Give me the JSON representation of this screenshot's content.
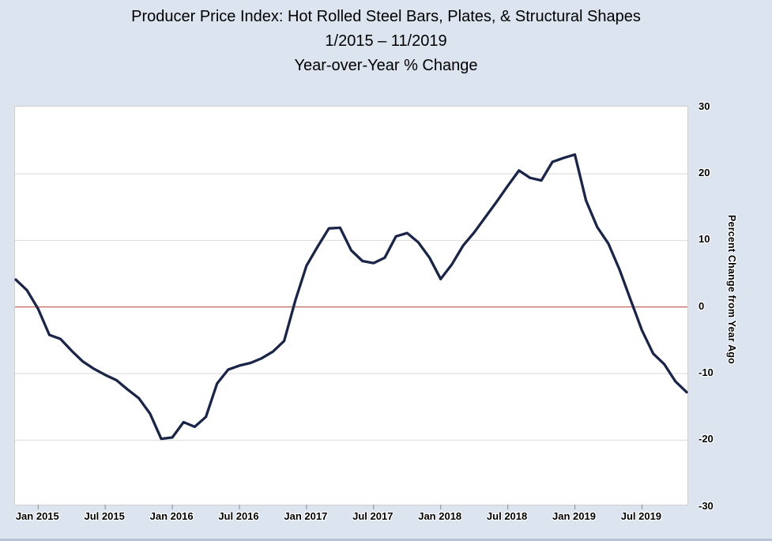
{
  "page_bg": "#dce4f0",
  "header": {
    "title_line1": "Producer Price Index: Hot Rolled Steel Bars, Plates, & Structural Shapes",
    "title_line2": "1/2015 – 11/2019",
    "title_line3": "Year-over-Year % Change"
  },
  "chart_data": {
    "type": "line",
    "title": "Producer Price Index: Hot Rolled Steel Bars, Plates, & Structural Shapes",
    "subtitle": "1/2015 – 11/2019",
    "value_label": "Year-over-Year % Change",
    "ylabel_right": "Percent Change from Year Ago",
    "ylim": [
      -30,
      30
    ],
    "y_ticks": [
      30,
      20,
      10,
      0,
      -10,
      -20,
      -30
    ],
    "grid": true,
    "legend_position": "none",
    "zero_line_value": 0,
    "colors": {
      "line": "#1a2547",
      "zero_line": "#c0524e",
      "gridline": "#d9d9d9",
      "plot_bg": "#ffffff",
      "tick": "#8a8a8a"
    },
    "x_ticks": [
      {
        "label": "Jan 2015",
        "index": 2
      },
      {
        "label": "Jul 2015",
        "index": 8
      },
      {
        "label": "Jan 2016",
        "index": 14
      },
      {
        "label": "Jul 2016",
        "index": 20
      },
      {
        "label": "Jan 2017",
        "index": 26
      },
      {
        "label": "Jul 2017",
        "index": 32
      },
      {
        "label": "Jan 2018",
        "index": 38
      },
      {
        "label": "Jul 2018",
        "index": 44
      },
      {
        "label": "Jan 2019",
        "index": 50
      },
      {
        "label": "Jul 2019",
        "index": 56
      }
    ],
    "series": [
      {
        "x": [
          "Nov 2014",
          "Dec 2014",
          "Jan 2015",
          "Feb 2015",
          "Mar 2015",
          "Apr 2015",
          "May 2015",
          "Jun 2015",
          "Jul 2015",
          "Aug 2015",
          "Sep 2015",
          "Oct 2015",
          "Nov 2015",
          "Dec 2015",
          "Jan 2016",
          "Feb 2016",
          "Mar 2016",
          "Apr 2016",
          "May 2016",
          "Jun 2016",
          "Jul 2016",
          "Aug 2016",
          "Sep 2016",
          "Oct 2016",
          "Nov 2016",
          "Dec 2016",
          "Jan 2017",
          "Feb 2017",
          "Mar 2017",
          "Apr 2017",
          "May 2017",
          "Jun 2017",
          "Jul 2017",
          "Aug 2017",
          "Sep 2017",
          "Oct 2017",
          "Nov 2017",
          "Dec 2017",
          "Jan 2018",
          "Feb 2018",
          "Mar 2018",
          "Apr 2018",
          "May 2018",
          "Jun 2018",
          "Jul 2018",
          "Aug 2018",
          "Sep 2018",
          "Oct 2018",
          "Nov 2018",
          "Dec 2018",
          "Jan 2019",
          "Feb 2019",
          "Mar 2019",
          "Apr 2019",
          "May 2019",
          "Jun 2019",
          "Jul 2019",
          "Aug 2019",
          "Sep 2019",
          "Oct 2019",
          "Nov 2019"
        ],
        "values": [
          4.1,
          2.5,
          -0.3,
          -4.2,
          -4.8,
          -6.6,
          -8.2,
          -9.3,
          -10.2,
          -11.0,
          -12.4,
          -13.7,
          -16.0,
          -19.8,
          -19.6,
          -17.3,
          -18.0,
          -16.5,
          -11.5,
          -9.4,
          -8.8,
          -8.4,
          -7.7,
          -6.7,
          -5.1,
          1.0,
          6.2,
          9.1,
          11.8,
          11.9,
          8.5,
          6.9,
          6.6,
          7.4,
          10.6,
          11.1,
          9.7,
          7.4,
          4.2,
          6.4,
          9.2,
          11.2,
          13.5,
          15.8,
          18.2,
          20.5,
          19.4,
          19.0,
          21.8,
          22.4,
          22.9,
          16.0,
          12.0,
          9.5,
          5.6,
          1.0,
          -3.5,
          -7.0,
          -8.6,
          -11.2,
          -12.8
        ]
      }
    ]
  }
}
